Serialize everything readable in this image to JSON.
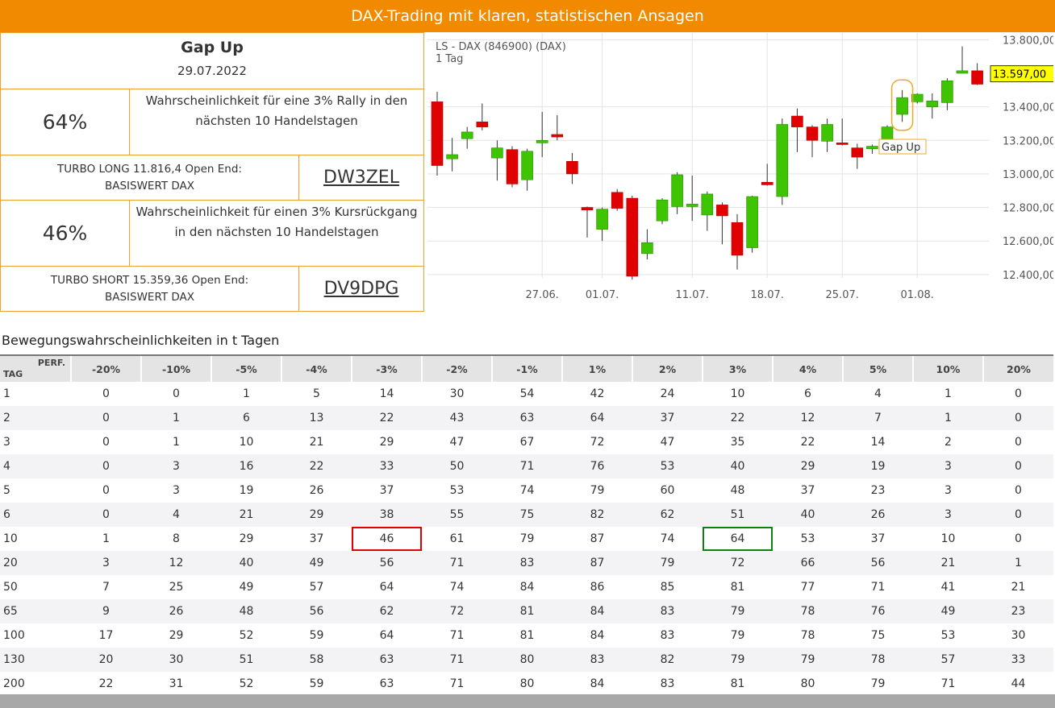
{
  "header": {
    "title": "DAX-Trading mit klaren, statistischen Ansagen"
  },
  "signal": {
    "title": "Gap Up",
    "date": "29.07.2022",
    "rows": [
      {
        "probability": "64%",
        "text": "Wahrscheinlichkeit für eine 3% Rally in den nächsten 10 Handelstagen",
        "product": [
          "TURBO LONG 11.816,4 Open End:",
          "BASISWERT DAX"
        ],
        "code": "DW3ZEL"
      },
      {
        "probability": "46%",
        "text": "Wahrscheinlichkeit für einen 3% Kursrückgang in den nächsten 10 Handelstagen",
        "product": [
          "TURBO SHORT 15.359,36 Open End:",
          "BASISWERT DAX"
        ],
        "code": "DV9DPG"
      }
    ]
  },
  "chart": {
    "type": "candlestick",
    "title": "LS - DAX (846900) (DAX)",
    "subtitle": "1 Tag",
    "up_color": "#3ec400",
    "down_color": "#e00000",
    "grid": true,
    "categories": [
      null,
      null,
      null,
      null,
      null,
      null,
      null,
      "27.06.",
      null,
      null,
      null,
      "01.07.",
      null,
      null,
      null,
      null,
      null,
      "11.07.",
      null,
      null,
      null,
      null,
      "18.07.",
      null,
      null,
      null,
      null,
      "25.07.",
      null,
      null,
      null,
      null,
      "01.08.",
      null,
      null,
      null,
      null,
      null
    ],
    "candles": [
      {
        "open": 13430,
        "high": 13490,
        "low": 12990,
        "close": 13050
      },
      {
        "open": 13090,
        "high": 13215,
        "low": 13015,
        "close": 13115
      },
      {
        "open": 13210,
        "high": 13280,
        "low": 13150,
        "close": 13250
      },
      {
        "open": 13310,
        "high": 13420,
        "low": 13260,
        "close": 13280
      },
      {
        "open": 13095,
        "high": 13200,
        "low": 12960,
        "close": 13155
      },
      {
        "open": 13145,
        "high": 13165,
        "low": 12920,
        "close": 12940
      },
      {
        "open": 12965,
        "high": 13150,
        "low": 12900,
        "close": 13135
      },
      {
        "open": 13185,
        "high": 13370,
        "low": 13100,
        "close": 13200
      },
      {
        "open": 13235,
        "high": 13350,
        "low": 13200,
        "close": 13220
      },
      {
        "open": 13075,
        "high": 13125,
        "low": 12940,
        "close": 13000
      },
      {
        "open": 12800,
        "high": 12805,
        "low": 12620,
        "close": 12785
      },
      {
        "open": 12670,
        "high": 12800,
        "low": 12600,
        "close": 12790
      },
      {
        "open": 12890,
        "high": 12910,
        "low": 12780,
        "close": 12795
      },
      {
        "open": 12855,
        "high": 12870,
        "low": 12370,
        "close": 12390
      },
      {
        "open": 12525,
        "high": 12670,
        "low": 12490,
        "close": 12590
      },
      {
        "open": 12720,
        "high": 12855,
        "low": 12700,
        "close": 12845
      },
      {
        "open": 12805,
        "high": 13010,
        "low": 12760,
        "close": 12995
      },
      {
        "open": 12805,
        "high": 12990,
        "low": 12720,
        "close": 12820
      },
      {
        "open": 12755,
        "high": 12895,
        "low": 12660,
        "close": 12880
      },
      {
        "open": 12815,
        "high": 12830,
        "low": 12580,
        "close": 12750
      },
      {
        "open": 12710,
        "high": 12760,
        "low": 12430,
        "close": 12515
      },
      {
        "open": 12560,
        "high": 12870,
        "low": 12530,
        "close": 12865
      },
      {
        "open": 12950,
        "high": 13060,
        "low": 12930,
        "close": 12935
      },
      {
        "open": 12865,
        "high": 13330,
        "low": 12815,
        "close": 13295
      },
      {
        "open": 13345,
        "high": 13390,
        "low": 13130,
        "close": 13280
      },
      {
        "open": 13280,
        "high": 13290,
        "low": 13100,
        "close": 13200
      },
      {
        "open": 13195,
        "high": 13330,
        "low": 13130,
        "close": 13295
      },
      {
        "open": 13185,
        "high": 13330,
        "low": 13170,
        "close": 13175
      },
      {
        "open": 13155,
        "high": 13180,
        "low": 13030,
        "close": 13100
      },
      {
        "open": 13150,
        "high": 13175,
        "low": 13120,
        "close": 13165
      },
      {
        "open": 13200,
        "high": 13290,
        "low": 13200,
        "close": 13280
      },
      {
        "open": 13355,
        "high": 13500,
        "low": 13310,
        "close": 13455
      },
      {
        "open": 13430,
        "high": 13480,
        "low": 13420,
        "close": 13475
      },
      {
        "open": 13400,
        "high": 13480,
        "low": 13330,
        "close": 13435
      },
      {
        "open": 13425,
        "high": 13570,
        "low": 13380,
        "close": 13555
      },
      {
        "open": 13600,
        "high": 13760,
        "low": 13600,
        "close": 13615
      },
      {
        "open": 13615,
        "high": 13660,
        "low": 13530,
        "close": 13535
      }
    ],
    "ylim": [
      12380,
      13840
    ],
    "yticks": [
      {
        "value": 12400,
        "label": "12.400,00"
      },
      {
        "value": 12600,
        "label": "12.600,00"
      },
      {
        "value": 12800,
        "label": "12.800,00"
      },
      {
        "value": 13000,
        "label": "13.000,00"
      },
      {
        "value": 13200,
        "label": "13.200,00"
      },
      {
        "value": 13400,
        "label": "13.400,00"
      },
      {
        "value": 13800,
        "label": "13.800,00"
      }
    ],
    "last_price": {
      "value": 13597,
      "label": "13.597,00"
    },
    "annotation": "Gap Up"
  },
  "table": {
    "title": "Bewegungswahrscheinlichkeiten in t Tagen",
    "corner": [
      "PERF.",
      "TAG"
    ],
    "columns": [
      "-20%",
      "-10%",
      "-5%",
      "-4%",
      "-3%",
      "-2%",
      "-1%",
      "1%",
      "2%",
      "3%",
      "4%",
      "5%",
      "10%",
      "20%"
    ],
    "rows": [
      [
        1,
        0,
        0,
        1,
        5,
        14,
        30,
        54,
        42,
        24,
        10,
        6,
        4,
        1,
        0
      ],
      [
        2,
        0,
        1,
        6,
        13,
        22,
        43,
        63,
        64,
        37,
        22,
        12,
        7,
        1,
        0
      ],
      [
        3,
        0,
        1,
        10,
        21,
        29,
        47,
        67,
        72,
        47,
        35,
        22,
        14,
        2,
        0
      ],
      [
        4,
        0,
        3,
        16,
        22,
        33,
        50,
        71,
        76,
        53,
        40,
        29,
        19,
        3,
        0
      ],
      [
        5,
        0,
        3,
        19,
        26,
        37,
        53,
        74,
        79,
        60,
        48,
        37,
        23,
        3,
        0
      ],
      [
        6,
        0,
        4,
        21,
        29,
        38,
        55,
        75,
        82,
        62,
        51,
        40,
        26,
        3,
        0
      ],
      [
        10,
        1,
        8,
        29,
        37,
        46,
        61,
        79,
        87,
        74,
        64,
        53,
        37,
        10,
        0
      ],
      [
        20,
        3,
        12,
        40,
        49,
        56,
        71,
        83,
        87,
        79,
        72,
        66,
        56,
        21,
        1
      ],
      [
        50,
        7,
        25,
        49,
        57,
        64,
        74,
        84,
        86,
        85,
        81,
        77,
        71,
        41,
        21
      ],
      [
        65,
        9,
        26,
        48,
        56,
        62,
        72,
        81,
        84,
        83,
        79,
        78,
        76,
        49,
        23
      ],
      [
        100,
        17,
        29,
        52,
        59,
        64,
        71,
        81,
        84,
        83,
        79,
        78,
        75,
        53,
        30
      ],
      [
        130,
        20,
        30,
        51,
        58,
        63,
        71,
        80,
        83,
        82,
        79,
        79,
        78,
        57,
        33
      ],
      [
        200,
        22,
        31,
        52,
        59,
        63,
        71,
        80,
        84,
        83,
        81,
        80,
        79,
        71,
        44
      ]
    ]
  }
}
